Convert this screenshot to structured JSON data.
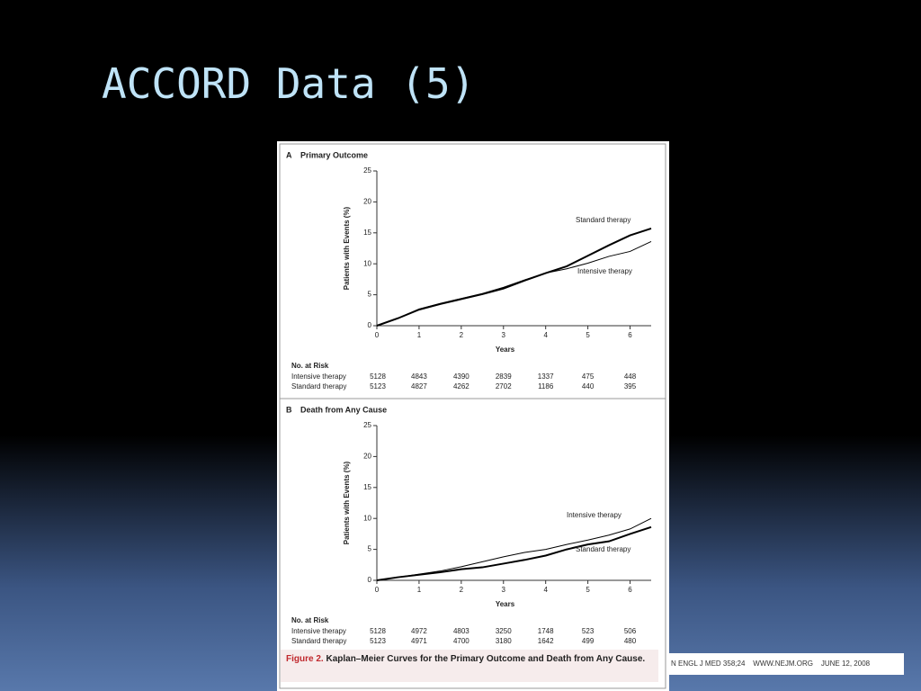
{
  "title": "ACCORD Data (5)",
  "chart_data": [
    {
      "type": "line",
      "panel": "A",
      "title": "Primary Outcome",
      "y_label": "Patients with Events (%)",
      "x_label": "Years",
      "x": [
        0,
        0.5,
        1,
        1.5,
        2,
        2.5,
        3,
        3.5,
        4,
        4.5,
        5,
        5.5,
        6,
        6.5
      ],
      "series": [
        {
          "name": "Standard therapy",
          "color": "#000000",
          "values": [
            0,
            1.2,
            2.6,
            3.5,
            4.3,
            5.1,
            6.0,
            7.3,
            8.5,
            9.6,
            11.3,
            13.0,
            14.6,
            15.7
          ]
        },
        {
          "name": "Intensive therapy",
          "color": "#000000",
          "values": [
            0,
            1.2,
            2.7,
            3.6,
            4.4,
            5.2,
            6.2,
            7.4,
            8.5,
            9.2,
            10.1,
            11.2,
            12.0,
            13.6
          ]
        }
      ],
      "xlim": [
        0,
        6.5
      ],
      "xticks": [
        0,
        1,
        2,
        3,
        4,
        5,
        6
      ],
      "ylim": [
        0,
        25
      ],
      "yticks": [
        0,
        5,
        10,
        15,
        20,
        25
      ],
      "risk_table": {
        "title": "No. at Risk",
        "rows": [
          {
            "name": "Intensive therapy",
            "values": [
              5128,
              4843,
              4390,
              2839,
              1337,
              475,
              448
            ]
          },
          {
            "name": "Standard therapy",
            "values": [
              5123,
              4827,
              4262,
              2702,
              1186,
              440,
              395
            ]
          }
        ]
      }
    },
    {
      "type": "line",
      "panel": "B",
      "title": "Death from Any Cause",
      "y_label": "Patients with Events (%)",
      "x_label": "Years",
      "x": [
        0,
        0.5,
        1,
        1.5,
        2,
        2.5,
        3,
        3.5,
        4,
        4.5,
        5,
        5.5,
        6,
        6.5
      ],
      "series": [
        {
          "name": "Intensive therapy",
          "color": "#000000",
          "values": [
            0,
            0.5,
            1.0,
            1.5,
            2.2,
            3.0,
            3.8,
            4.5,
            5.0,
            5.8,
            6.5,
            7.3,
            8.3,
            10.0
          ]
        },
        {
          "name": "Standard therapy",
          "color": "#000000",
          "values": [
            0,
            0.5,
            0.9,
            1.3,
            1.8,
            2.1,
            2.7,
            3.3,
            4.0,
            5.0,
            5.8,
            6.3,
            7.5,
            8.6
          ]
        }
      ],
      "xlim": [
        0,
        6.5
      ],
      "xticks": [
        0,
        1,
        2,
        3,
        4,
        5,
        6
      ],
      "ylim": [
        0,
        25
      ],
      "yticks": [
        0,
        5,
        10,
        15,
        20,
        25
      ],
      "risk_table": {
        "title": "No. at Risk",
        "rows": [
          {
            "name": "Intensive therapy",
            "values": [
              5128,
              4972,
              4803,
              3250,
              1748,
              523,
              506
            ]
          },
          {
            "name": "Standard therapy",
            "values": [
              5123,
              4971,
              4700,
              3180,
              1642,
              499,
              480
            ]
          }
        ]
      }
    }
  ],
  "caption_label": "Figure 2.",
  "caption_text": "Kaplan–Meier Curves for the Primary Outcome and Death from Any Cause.",
  "footer": "N ENGL J MED 358;24    WWW.NEJM.ORG    JUNE 12, 2008"
}
